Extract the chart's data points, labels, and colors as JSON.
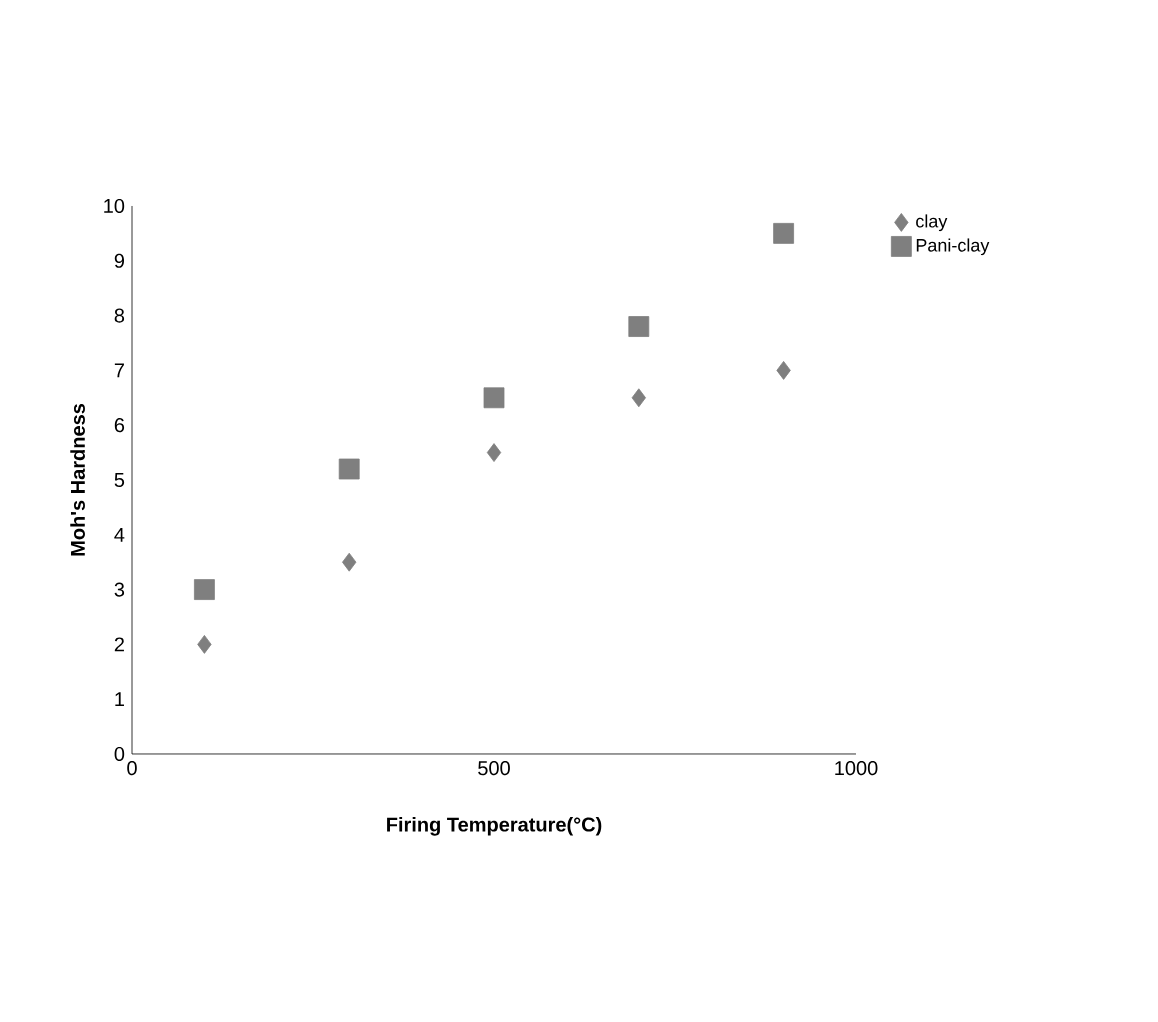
{
  "chart_data": {
    "type": "scatter",
    "xlabel": "Firing Temperature(°C)",
    "ylabel": "Moh's Hardness",
    "xlim": [
      0,
      1000
    ],
    "xticks": [
      0,
      500,
      1000
    ],
    "ylim": [
      0,
      10
    ],
    "yticks": [
      0,
      1,
      2,
      3,
      4,
      5,
      6,
      7,
      8,
      9,
      10
    ],
    "legend": "top right",
    "grid": false,
    "series": [
      {
        "name": "clay",
        "color": "#7f7f7f",
        "marker": "diamond",
        "x": [
          100,
          300,
          500,
          700,
          900
        ],
        "values": [
          2,
          3.5,
          5.5,
          6.5,
          7
        ]
      },
      {
        "name": "Pani-clay",
        "color": "#7f7f7f",
        "marker": "square",
        "x": [
          100,
          300,
          500,
          700,
          900
        ],
        "values": [
          3,
          5.2,
          6.5,
          7.8,
          9.5
        ]
      }
    ]
  }
}
